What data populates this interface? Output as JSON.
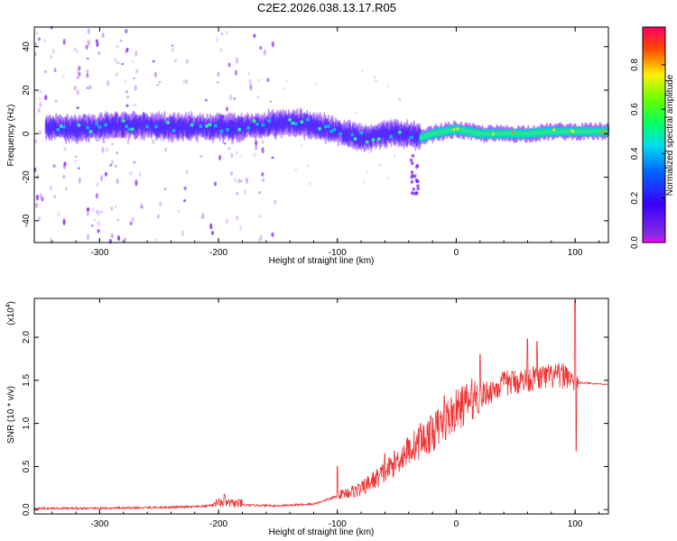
{
  "page": {
    "title": "C2E2.2026.038.13.17.R05"
  },
  "chart_data": [
    {
      "type": "heatmap",
      "name": "spectrogram",
      "xlabel": "Height of straight line (km)",
      "ylabel": "Frequency (Hz)",
      "xlim": [
        -355,
        128
      ],
      "ylim": [
        -50,
        49
      ],
      "xticks": [
        -300,
        -200,
        -100,
        0,
        100
      ],
      "yticks": [
        -40,
        -20,
        0,
        20,
        40
      ],
      "grid": false,
      "colorbar": {
        "label": "Normalized spectral amplitude",
        "range": [
          0.0,
          0.97
        ],
        "ticks": [
          0.0,
          0.2,
          0.4,
          0.6,
          0.8
        ],
        "tick_labels": [
          "0.0",
          "0.2",
          "0.4",
          "0.6",
          "0.8"
        ],
        "colormap": "rainbow (violet-blue-cyan-green-yellow-red-magenta)"
      },
      "band_center_hz": [
        [
          -340,
          3
        ],
        [
          -320,
          2
        ],
        [
          -300,
          3
        ],
        [
          -280,
          4
        ],
        [
          -260,
          4
        ],
        [
          -240,
          3
        ],
        [
          -220,
          3
        ],
        [
          -200,
          3
        ],
        [
          -180,
          3
        ],
        [
          -160,
          4
        ],
        [
          -140,
          5
        ],
        [
          -120,
          4
        ],
        [
          -100,
          1
        ],
        [
          -80,
          -2
        ],
        [
          -60,
          0
        ],
        [
          -40,
          0
        ],
        [
          -30,
          -2
        ],
        [
          -20,
          0
        ],
        [
          0,
          2
        ],
        [
          20,
          0
        ],
        [
          40,
          0
        ],
        [
          60,
          0
        ],
        [
          80,
          1
        ],
        [
          100,
          1
        ],
        [
          128,
          1
        ]
      ]
    },
    {
      "type": "line",
      "name": "snr",
      "xlabel": "Height of straight line (km)",
      "ylabel": "SNR (10 * v/v)",
      "exponent_label": "(x10",
      "exponent_power": "4",
      "exponent_close": ")",
      "xlim": [
        -355,
        128
      ],
      "ylim": [
        -0.05,
        2.45
      ],
      "xticks": [
        -300,
        -200,
        -100,
        0,
        100
      ],
      "yticks": [
        0.0,
        0.5,
        1.0,
        1.5,
        2.0
      ],
      "ytick_labels": [
        "0.0",
        "0.5",
        "1.0",
        "1.5",
        "2.0"
      ],
      "grid": false,
      "color": "#ee3333",
      "envelope": [
        [
          -355,
          0.01
        ],
        [
          -300,
          0.01
        ],
        [
          -250,
          0.02
        ],
        [
          -215,
          0.03
        ],
        [
          -200,
          0.06
        ],
        [
          -185,
          0.05
        ],
        [
          -150,
          0.04
        ],
        [
          -120,
          0.06
        ],
        [
          -100,
          0.15
        ],
        [
          -80,
          0.2
        ],
        [
          -60,
          0.38
        ],
        [
          -40,
          0.62
        ],
        [
          -20,
          0.8
        ],
        [
          0,
          1.05
        ],
        [
          20,
          1.25
        ],
        [
          40,
          1.4
        ],
        [
          60,
          1.45
        ],
        [
          80,
          1.48
        ],
        [
          95,
          1.5
        ],
        [
          100,
          1.4
        ],
        [
          104,
          1.47
        ],
        [
          128,
          1.45
        ]
      ],
      "peaks": [
        [
          -195,
          0.18
        ],
        [
          -100,
          0.5
        ],
        [
          -60,
          0.65
        ],
        [
          -30,
          1.0
        ],
        [
          -10,
          1.32
        ],
        [
          20,
          1.8
        ],
        [
          60,
          1.98
        ],
        [
          68,
          1.95
        ],
        [
          100,
          2.42
        ],
        [
          101,
          0.68
        ]
      ]
    }
  ]
}
